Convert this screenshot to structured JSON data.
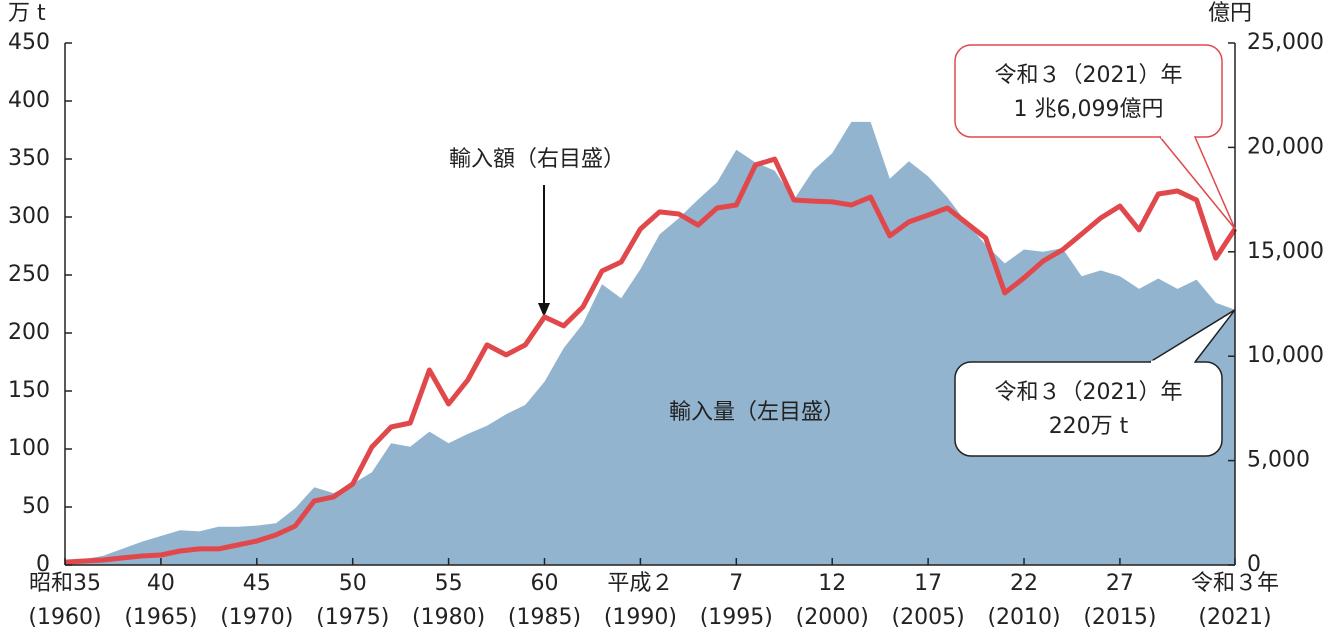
{
  "chart_data": {
    "type": "area-line",
    "y_unit": "万 t",
    "y2_unit": "億円",
    "x": [
      1960,
      1961,
      1962,
      1963,
      1964,
      1965,
      1966,
      1967,
      1968,
      1969,
      1970,
      1971,
      1972,
      1973,
      1974,
      1975,
      1976,
      1977,
      1978,
      1979,
      1980,
      1981,
      1982,
      1983,
      1984,
      1985,
      1986,
      1987,
      1988,
      1989,
      1990,
      1991,
      1992,
      1993,
      1994,
      1995,
      1996,
      1997,
      1998,
      1999,
      2000,
      2001,
      2002,
      2003,
      2004,
      2005,
      2006,
      2007,
      2008,
      2009,
      2010,
      2011,
      2012,
      2013,
      2014,
      2015,
      2016,
      2017,
      2018,
      2019,
      2020,
      2021
    ],
    "xlim": [
      1960,
      2021
    ],
    "xticks": [
      {
        "value": 1960,
        "label": "昭和35"
      },
      {
        "value": 1965,
        "label": "40"
      },
      {
        "value": 1970,
        "label": "45"
      },
      {
        "value": 1975,
        "label": "50"
      },
      {
        "value": 1980,
        "label": "55"
      },
      {
        "value": 1985,
        "label": "60"
      },
      {
        "value": 1990,
        "label": "平成２"
      },
      {
        "value": 1995,
        "label": "7"
      },
      {
        "value": 2000,
        "label": "12"
      },
      {
        "value": 2005,
        "label": "17"
      },
      {
        "value": 2010,
        "label": "22"
      },
      {
        "value": 2015,
        "label": "27"
      },
      {
        "value": 2021,
        "label": "令和３年"
      }
    ],
    "xticks_western": [
      {
        "value": 1960,
        "label": "(1960)"
      },
      {
        "value": 1965,
        "label": "(1965)"
      },
      {
        "value": 1970,
        "label": "(1970)"
      },
      {
        "value": 1975,
        "label": "(1975)"
      },
      {
        "value": 1980,
        "label": "(1980)"
      },
      {
        "value": 1985,
        "label": "(1985)"
      },
      {
        "value": 1990,
        "label": "(1990)"
      },
      {
        "value": 1995,
        "label": "(1995)"
      },
      {
        "value": 2000,
        "label": "(2000)"
      },
      {
        "value": 2005,
        "label": "(2005)"
      },
      {
        "value": 2010,
        "label": "(2010)"
      },
      {
        "value": 2015,
        "label": "(2015)"
      },
      {
        "value": 2021,
        "label": "(2021)"
      }
    ],
    "ylim": [
      0,
      450
    ],
    "yticks": [
      0,
      50,
      100,
      150,
      200,
      250,
      300,
      350,
      400,
      450
    ],
    "y2lim": [
      0,
      25000
    ],
    "y2ticks": [
      0,
      {
        "value": 5000,
        "label": "5,000"
      },
      {
        "value": 10000,
        "label": "10,000"
      },
      {
        "value": 15000,
        "label": "15,000"
      },
      {
        "value": 20000,
        "label": "20,000"
      },
      {
        "value": 25000,
        "label": "25,000"
      }
    ],
    "series": [
      {
        "name": "輸入量（左目盛）",
        "color": "#93b4cf",
        "axis": "y",
        "values": [
          3,
          5,
          8,
          14,
          20,
          25,
          30,
          29,
          33,
          33,
          34,
          36,
          49,
          67,
          62,
          70,
          80,
          105,
          102,
          115,
          105,
          113,
          120,
          130,
          138,
          158,
          187,
          208,
          242,
          230,
          255,
          285,
          299,
          315,
          330,
          358,
          347,
          340,
          315,
          340,
          355,
          382,
          382,
          333,
          348,
          335,
          317,
          295,
          276,
          260,
          272,
          270,
          273,
          249,
          254,
          249,
          238,
          247,
          238,
          246,
          226,
          220
        ]
      },
      {
        "name": "輸入額（右目盛）",
        "color": "#e0484b",
        "axis": "y2",
        "values": [
          140,
          190,
          240,
          340,
          430,
          480,
          670,
          770,
          770,
          960,
          1150,
          1440,
          1870,
          3070,
          3260,
          3880,
          5650,
          6610,
          6800,
          9340,
          7710,
          8860,
          10540,
          10060,
          10540,
          11880,
          11450,
          12360,
          14080,
          14510,
          16090,
          16910,
          16810,
          16280,
          17100,
          17240,
          19160,
          19440,
          17480,
          17430,
          17390,
          17240,
          17620,
          15760,
          16430,
          16760,
          17100,
          16380,
          15660,
          13030,
          13750,
          14560,
          15090,
          15850,
          16620,
          17190,
          16050,
          17770,
          17910,
          17480,
          14700,
          16099
        ]
      }
    ],
    "callouts": [
      {
        "lines": [
          "令和３（2021）年",
          "1 兆6,099億円"
        ]
      },
      {
        "lines": [
          "令和３（2021）年",
          "220万 t"
        ]
      }
    ]
  }
}
